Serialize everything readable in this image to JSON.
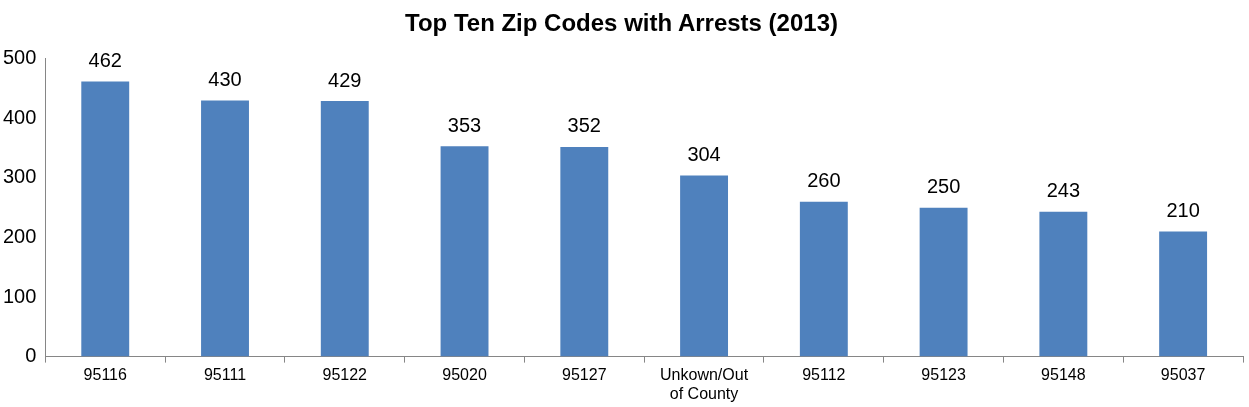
{
  "chart_data": {
    "type": "bar",
    "title": "Top Ten Zip Codes with Arrests (2013)",
    "categories": [
      "95116",
      "95111",
      "95122",
      "95020",
      "95127",
      "Unkown/Out of County",
      "95112",
      "95123",
      "95148",
      "95037"
    ],
    "values": [
      462,
      430,
      429,
      353,
      352,
      304,
      260,
      250,
      243,
      210
    ],
    "color": "#4f81bd",
    "ylim": [
      0,
      500
    ],
    "yticks": [
      0,
      100,
      200,
      300,
      400,
      500
    ],
    "grid": false,
    "legend": false,
    "data_labels": true
  }
}
